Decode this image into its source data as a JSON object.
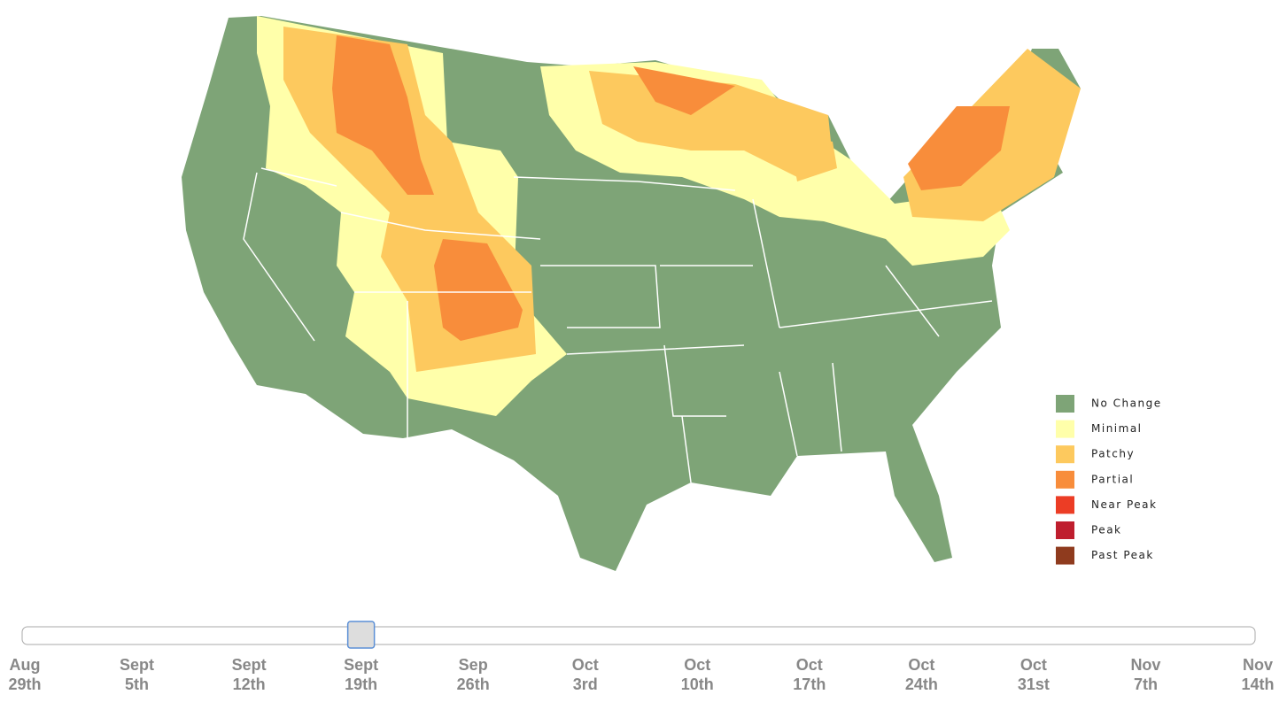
{
  "legend": {
    "items": [
      {
        "name": "No Change",
        "color": "#7ea477"
      },
      {
        "name": "Minimal",
        "color": "#ffffaa"
      },
      {
        "name": "Patchy",
        "color": "#fdc95e"
      },
      {
        "name": "Partial",
        "color": "#f88d3b"
      },
      {
        "name": "Near Peak",
        "color": "#ec3d25"
      },
      {
        "name": "Peak",
        "color": "#bf1e2e"
      },
      {
        "name": "Past Peak",
        "color": "#8f3b1e"
      }
    ]
  },
  "timeline": {
    "selected": 3,
    "dates": [
      {
        "month": "Aug",
        "day": "29th"
      },
      {
        "month": "Sept",
        "day": "5th"
      },
      {
        "month": "Sept",
        "day": "12th"
      },
      {
        "month": "Sept",
        "day": "19th"
      },
      {
        "month": "Sep",
        "day": "26th"
      },
      {
        "month": "Oct",
        "day": "3rd"
      },
      {
        "month": "Oct",
        "day": "10th"
      },
      {
        "month": "Oct",
        "day": "17th"
      },
      {
        "month": "Oct",
        "day": "24th"
      },
      {
        "month": "Oct",
        "day": "31st"
      },
      {
        "month": "Nov",
        "day": "7th"
      },
      {
        "month": "Nov",
        "day": "14th"
      }
    ]
  }
}
